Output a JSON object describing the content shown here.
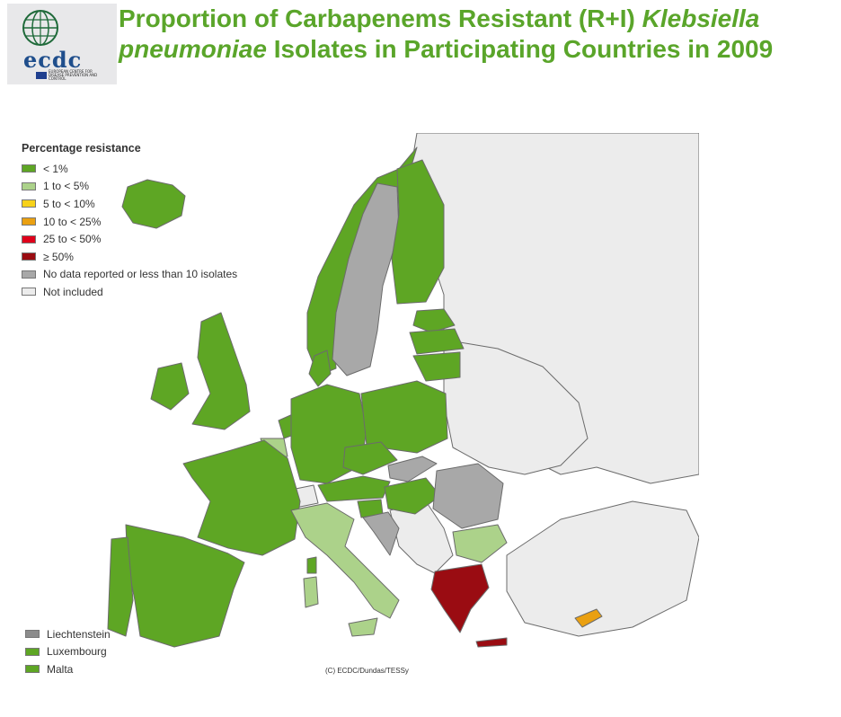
{
  "header": {
    "title_part1": "Proportion of Carbapenems Resistant (R+I) ",
    "title_italic": "Klebsiella pneumoniae",
    "title_part2": " Isolates in Participating Countries in 2009"
  },
  "logo": {
    "text": "ecdc",
    "subtext": "EUROPEAN CENTRE FOR DISEASE PREVENTION AND CONTROL"
  },
  "legend": {
    "title": "Percentage resistance",
    "items": [
      {
        "label": "< 1%",
        "color": "#5ea624"
      },
      {
        "label": "1 to < 5%",
        "color": "#acd28a"
      },
      {
        "label": "5 to < 10%",
        "color": "#f7d21a"
      },
      {
        "label": "10 to < 25%",
        "color": "#eaa011"
      },
      {
        "label": "25 to < 50%",
        "color": "#e0001b"
      },
      {
        "label": "≥ 50%",
        "color": "#9a0c12"
      },
      {
        "label": "No data reported or less than 10 isolates",
        "color": "#a8a8a8"
      },
      {
        "label": "Not included",
        "color": "#ececec"
      }
    ]
  },
  "small_countries": [
    {
      "name": "Liechtenstein",
      "color": "#8c8c8c"
    },
    {
      "name": "Luxembourg",
      "color": "#5ea624"
    },
    {
      "name": "Malta",
      "color": "#5ea624"
    }
  ],
  "credit": "(C) ECDC/Dundas/TESSy",
  "colors": {
    "title": "#5aa52a",
    "border": "#6b6b6b",
    "sea": "#ffffff"
  }
}
